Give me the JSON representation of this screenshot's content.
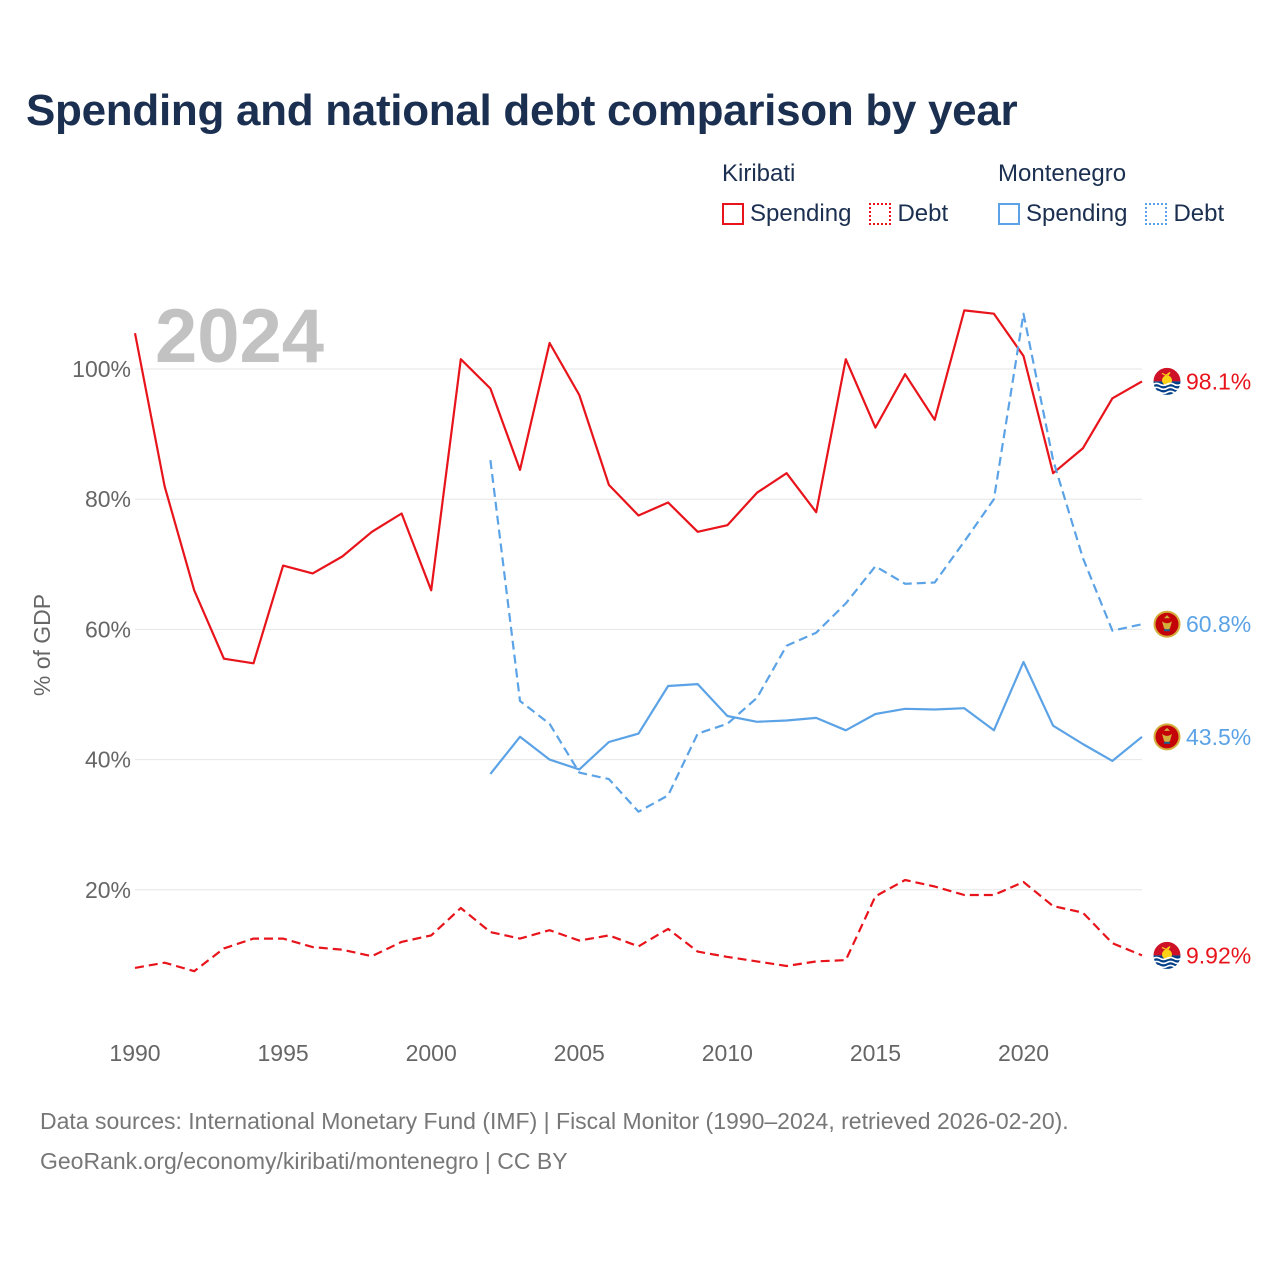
{
  "title": "Spending and national debt comparison by year",
  "legend": {
    "groups": [
      {
        "country": "Kiribati",
        "items": [
          {
            "label": "Spending",
            "color": "#e8141b",
            "style": "solid"
          },
          {
            "label": "Debt",
            "color": "#e8141b",
            "style": "dotted"
          }
        ]
      },
      {
        "country": "Montenegro",
        "items": [
          {
            "label": "Spending",
            "color": "#5ba3e6",
            "style": "solid"
          },
          {
            "label": "Debt",
            "color": "#5ba3e6",
            "style": "dotted"
          }
        ]
      }
    ]
  },
  "chart_data": {
    "type": "line",
    "title": "Spending and national debt comparison by year",
    "year_label": "2024",
    "xlabel": "",
    "ylabel": "% of GDP",
    "xlim": [
      1990,
      2024
    ],
    "ylim": [
      0,
      110
    ],
    "x_ticks": [
      1990,
      1995,
      2000,
      2005,
      2010,
      2015,
      2020
    ],
    "y_ticks": [
      20,
      40,
      60,
      80,
      100
    ],
    "y_tick_labels": [
      "20%",
      "40%",
      "60%",
      "80%",
      "100%"
    ],
    "grid": true,
    "series": [
      {
        "name": "Kiribati Spending",
        "color": "#e8141b",
        "dash": "solid",
        "end_label": "98.1%",
        "flag": "kiribati",
        "points": [
          [
            1990,
            105.5
          ],
          [
            1991,
            82.0
          ],
          [
            1992,
            66.0
          ],
          [
            1993,
            55.5
          ],
          [
            1994,
            54.8
          ],
          [
            1995,
            69.8
          ],
          [
            1996,
            68.6
          ],
          [
            1997,
            71.2
          ],
          [
            1998,
            75.0
          ],
          [
            1999,
            77.8
          ],
          [
            2000,
            66.0
          ],
          [
            2001,
            101.5
          ],
          [
            2002,
            97.0
          ],
          [
            2003,
            84.5
          ],
          [
            2004,
            104.0
          ],
          [
            2005,
            96.0
          ],
          [
            2006,
            82.2
          ],
          [
            2007,
            77.5
          ],
          [
            2008,
            79.5
          ],
          [
            2009,
            75.0
          ],
          [
            2010,
            76.0
          ],
          [
            2011,
            81.0
          ],
          [
            2012,
            84.0
          ],
          [
            2013,
            78.0
          ],
          [
            2014,
            101.5
          ],
          [
            2015,
            91.0
          ],
          [
            2016,
            99.2
          ],
          [
            2017,
            92.2
          ],
          [
            2018,
            109.0
          ],
          [
            2019,
            108.5
          ],
          [
            2020,
            102.0
          ],
          [
            2021,
            84.0
          ],
          [
            2022,
            87.8
          ],
          [
            2023,
            95.5
          ],
          [
            2024,
            98.1
          ]
        ]
      },
      {
        "name": "Kiribati Debt",
        "color": "#e8141b",
        "dash": "dashed",
        "end_label": "9.92%",
        "flag": "kiribati",
        "points": [
          [
            1990,
            8.0
          ],
          [
            1991,
            8.8
          ],
          [
            1992,
            7.5
          ],
          [
            1993,
            11.0
          ],
          [
            1994,
            12.5
          ],
          [
            1995,
            12.5
          ],
          [
            1996,
            11.2
          ],
          [
            1997,
            10.8
          ],
          [
            1998,
            9.8
          ],
          [
            1999,
            12.0
          ],
          [
            2000,
            13.0
          ],
          [
            2001,
            17.2
          ],
          [
            2002,
            13.5
          ],
          [
            2003,
            12.5
          ],
          [
            2004,
            13.8
          ],
          [
            2005,
            12.2
          ],
          [
            2006,
            13.0
          ],
          [
            2007,
            11.3
          ],
          [
            2008,
            14.0
          ],
          [
            2009,
            10.5
          ],
          [
            2010,
            9.7
          ],
          [
            2011,
            9.0
          ],
          [
            2012,
            8.3
          ],
          [
            2013,
            9.0
          ],
          [
            2014,
            9.2
          ],
          [
            2015,
            19.0
          ],
          [
            2016,
            21.5
          ],
          [
            2017,
            20.5
          ],
          [
            2018,
            19.2
          ],
          [
            2019,
            19.2
          ],
          [
            2020,
            21.2
          ],
          [
            2021,
            17.5
          ],
          [
            2022,
            16.5
          ],
          [
            2023,
            11.8
          ],
          [
            2024,
            9.92
          ]
        ]
      },
      {
        "name": "Montenegro Spending",
        "color": "#5ba3e6",
        "dash": "solid",
        "end_label": "43.5%",
        "flag": "montenegro",
        "points": [
          [
            2002,
            37.8
          ],
          [
            2003,
            43.5
          ],
          [
            2004,
            40.0
          ],
          [
            2005,
            38.5
          ],
          [
            2006,
            42.7
          ],
          [
            2007,
            44.0
          ],
          [
            2008,
            51.3
          ],
          [
            2009,
            51.6
          ],
          [
            2010,
            46.7
          ],
          [
            2011,
            45.8
          ],
          [
            2012,
            46.0
          ],
          [
            2013,
            46.4
          ],
          [
            2014,
            44.5
          ],
          [
            2015,
            47.0
          ],
          [
            2016,
            47.8
          ],
          [
            2017,
            47.7
          ],
          [
            2018,
            47.9
          ],
          [
            2019,
            44.5
          ],
          [
            2020,
            55.0
          ],
          [
            2021,
            45.2
          ],
          [
            2022,
            42.4
          ],
          [
            2023,
            39.8
          ],
          [
            2024,
            43.5
          ]
        ]
      },
      {
        "name": "Montenegro Debt",
        "color": "#5ba3e6",
        "dash": "dashed",
        "end_label": "60.8%",
        "flag": "montenegro",
        "points": [
          [
            2002,
            86.0
          ],
          [
            2003,
            49.0
          ],
          [
            2004,
            45.5
          ],
          [
            2005,
            38.0
          ],
          [
            2006,
            37.0
          ],
          [
            2007,
            32.0
          ],
          [
            2008,
            34.5
          ],
          [
            2009,
            44.0
          ],
          [
            2010,
            45.5
          ],
          [
            2011,
            49.5
          ],
          [
            2012,
            57.5
          ],
          [
            2013,
            59.5
          ],
          [
            2014,
            64.0
          ],
          [
            2015,
            69.7
          ],
          [
            2016,
            67.0
          ],
          [
            2017,
            67.2
          ],
          [
            2018,
            73.5
          ],
          [
            2019,
            80.0
          ],
          [
            2020,
            108.5
          ],
          [
            2021,
            86.0
          ],
          [
            2022,
            71.0
          ],
          [
            2023,
            59.8
          ],
          [
            2024,
            60.8
          ]
        ]
      }
    ]
  },
  "footer": {
    "source": "Data sources: International Monetary Fund (IMF) | Fiscal Monitor (1990–2024, retrieved 2026-02-20).",
    "credit": "GeoRank.org/economy/kiribati/montenegro | CC BY"
  }
}
